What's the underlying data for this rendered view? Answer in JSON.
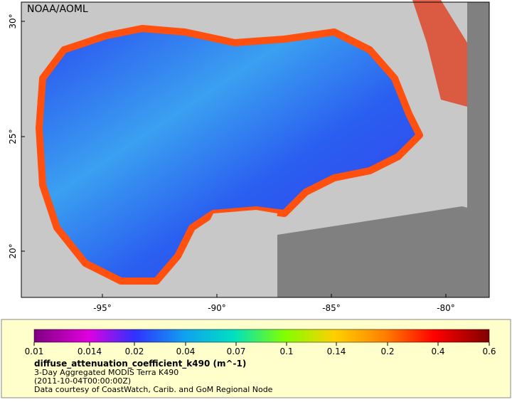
{
  "map": {
    "credit": "NOAA/AOML",
    "lat_labels": [
      "30°",
      "25°",
      "20°"
    ],
    "lon_labels": [
      "-95°",
      "-90°",
      "-85°",
      "-80°"
    ]
  },
  "colorbar": {
    "tick_labels": [
      "0.01",
      "0.014",
      "0.02",
      "0.04",
      "0.07",
      "0.1",
      "0.14",
      "0.2",
      "0.4",
      "0.6"
    ]
  },
  "caption": {
    "variable": "diffuse_attenuation_coefficient_k490 (m^-1)",
    "lines": [
      "3-Day Aggregated MODIS Terra K490",
      "(2011-10-04T00:00:00Z)",
      "Data courtesy of CoastWatch, Carib. and GoM Regional Node"
    ]
  }
}
